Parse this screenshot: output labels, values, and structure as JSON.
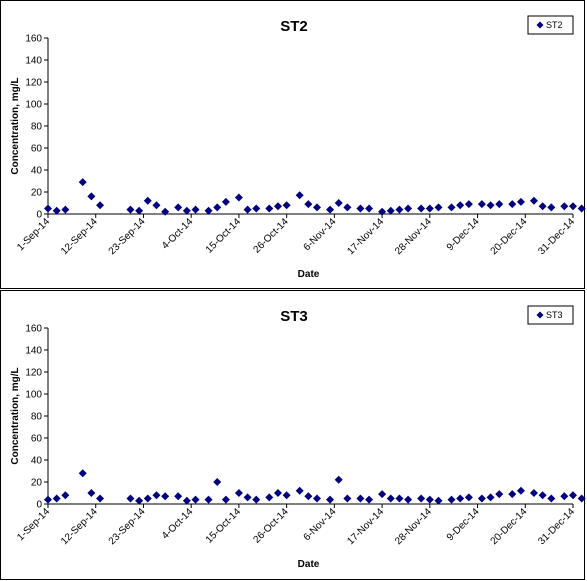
{
  "chart_data": [
    {
      "type": "scatter",
      "title": "ST2",
      "xlabel": "Date",
      "ylabel": "Concentration, mg/L",
      "ylim": [
        0,
        160
      ],
      "yticks": [
        "0",
        "20",
        "40",
        "60",
        "80",
        "100",
        "120",
        "140",
        "160"
      ],
      "xlim": [
        "1-Sep-14",
        "31-Dec-14"
      ],
      "xticks": [
        "1-Sep-14",
        "12-Sep-14",
        "23-Sep-14",
        "4-Oct-14",
        "15-Oct-14",
        "26-Oct-14",
        "6-Nov-14",
        "17-Nov-14",
        "28-Nov-14",
        "9-Dec-14",
        "20-Dec-14",
        "31-Dec-14"
      ],
      "grid": false,
      "legend": "top-right",
      "marker_color": "#000080",
      "series": [
        {
          "name": "ST2",
          "x": [
            "1-Sep-14",
            "3-Sep-14",
            "5-Sep-14",
            "9-Sep-14",
            "11-Sep-14",
            "13-Sep-14",
            "20-Sep-14",
            "22-Sep-14",
            "24-Sep-14",
            "26-Sep-14",
            "28-Sep-14",
            "1-Oct-14",
            "3-Oct-14",
            "5-Oct-14",
            "8-Oct-14",
            "10-Oct-14",
            "12-Oct-14",
            "15-Oct-14",
            "17-Oct-14",
            "19-Oct-14",
            "22-Oct-14",
            "24-Oct-14",
            "26-Oct-14",
            "29-Oct-14",
            "31-Oct-14",
            "2-Nov-14",
            "5-Nov-14",
            "7-Nov-14",
            "9-Nov-14",
            "12-Nov-14",
            "14-Nov-14",
            "17-Nov-14",
            "19-Nov-14",
            "21-Nov-14",
            "23-Nov-14",
            "26-Nov-14",
            "28-Nov-14",
            "30-Nov-14",
            "3-Dec-14",
            "5-Dec-14",
            "7-Dec-14",
            "10-Dec-14",
            "12-Dec-14",
            "14-Dec-14",
            "17-Dec-14",
            "19-Dec-14",
            "22-Dec-14",
            "24-Dec-14",
            "26-Dec-14",
            "29-Dec-14",
            "31-Dec-14",
            "2-Jan-15"
          ],
          "values": [
            5,
            3,
            4,
            29,
            16,
            8,
            4,
            3,
            12,
            8,
            2,
            6,
            3,
            4,
            3,
            6,
            11,
            15,
            4,
            5,
            5,
            7,
            8,
            17,
            9,
            6,
            4,
            10,
            6,
            5,
            5,
            2,
            3,
            4,
            5,
            5,
            5,
            6,
            6,
            8,
            9,
            9,
            8,
            9,
            9,
            11,
            12,
            7,
            6,
            7,
            7,
            5
          ]
        }
      ]
    },
    {
      "type": "scatter",
      "title": "ST3",
      "xlabel": "Date",
      "ylabel": "Concentration, mg/L",
      "ylim": [
        0,
        160
      ],
      "yticks": [
        "0",
        "20",
        "40",
        "60",
        "80",
        "100",
        "120",
        "140",
        "160"
      ],
      "xlim": [
        "1-Sep-14",
        "31-Dec-14"
      ],
      "xticks": [
        "1-Sep-14",
        "12-Sep-14",
        "23-Sep-14",
        "4-Oct-14",
        "15-Oct-14",
        "26-Oct-14",
        "6-Nov-14",
        "17-Nov-14",
        "28-Nov-14",
        "9-Dec-14",
        "20-Dec-14",
        "31-Dec-14"
      ],
      "grid": false,
      "legend": "top-right",
      "marker_color": "#000080",
      "series": [
        {
          "name": "ST3",
          "x": [
            "1-Sep-14",
            "3-Sep-14",
            "5-Sep-14",
            "9-Sep-14",
            "11-Sep-14",
            "13-Sep-14",
            "20-Sep-14",
            "22-Sep-14",
            "24-Sep-14",
            "26-Sep-14",
            "28-Sep-14",
            "1-Oct-14",
            "3-Oct-14",
            "5-Oct-14",
            "8-Oct-14",
            "10-Oct-14",
            "12-Oct-14",
            "15-Oct-14",
            "17-Oct-14",
            "19-Oct-14",
            "22-Oct-14",
            "24-Oct-14",
            "26-Oct-14",
            "29-Oct-14",
            "31-Oct-14",
            "2-Nov-14",
            "5-Nov-14",
            "7-Nov-14",
            "9-Nov-14",
            "12-Nov-14",
            "14-Nov-14",
            "17-Nov-14",
            "19-Nov-14",
            "21-Nov-14",
            "23-Nov-14",
            "26-Nov-14",
            "28-Nov-14",
            "30-Nov-14",
            "3-Dec-14",
            "5-Dec-14",
            "7-Dec-14",
            "10-Dec-14",
            "12-Dec-14",
            "14-Dec-14",
            "17-Dec-14",
            "19-Dec-14",
            "22-Dec-14",
            "24-Dec-14",
            "26-Dec-14",
            "29-Dec-14",
            "31-Dec-14",
            "2-Jan-15"
          ],
          "values": [
            4,
            5,
            8,
            28,
            10,
            5,
            5,
            3,
            5,
            8,
            7,
            7,
            3,
            4,
            4,
            20,
            4,
            10,
            6,
            4,
            6,
            10,
            8,
            12,
            7,
            5,
            4,
            22,
            5,
            5,
            4,
            9,
            5,
            5,
            4,
            5,
            4,
            3,
            4,
            5,
            6,
            5,
            6,
            9,
            9,
            12,
            10,
            8,
            5,
            7,
            8,
            5
          ]
        }
      ]
    }
  ]
}
